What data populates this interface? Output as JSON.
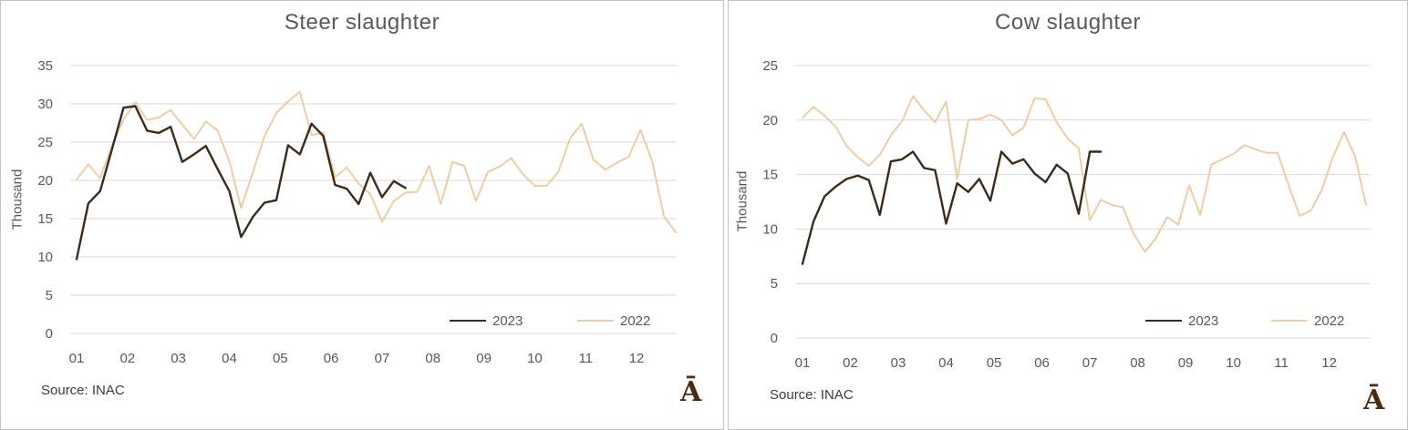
{
  "colors": {
    "series_2023": "#3B2B1D",
    "series_2022": "#EFCDA3",
    "grid": "#D9D9D9",
    "axis_text": "#595959",
    "title_text": "#595959",
    "source_text": "#3B3B3B",
    "logo": "#4B2A12",
    "panel_border": "#C6C4C2"
  },
  "panels": [
    {
      "title": "Steer slaughter",
      "y_axis_title": "Thousand",
      "source_label": "Source: INAC",
      "logo_glyph": "Ā",
      "legend": [
        {
          "label": "2023"
        },
        {
          "label": "2022"
        }
      ]
    },
    {
      "title": "Cow slaughter",
      "y_axis_title": "Thousand",
      "source_label": "Source: INAC",
      "logo_glyph": "Ā",
      "legend": [
        {
          "label": "2023"
        },
        {
          "label": "2022"
        }
      ]
    }
  ],
  "chart_data": [
    {
      "type": "line",
      "title": "Steer slaughter",
      "xlabel": "",
      "ylabel": "Thousand",
      "ylim": [
        0,
        35
      ],
      "y_ticks": [
        0,
        5,
        10,
        15,
        20,
        25,
        30,
        35
      ],
      "x_tick_labels": [
        "01",
        "02",
        "03",
        "04",
        "05",
        "06",
        "07",
        "08",
        "09",
        "10",
        "11",
        "12"
      ],
      "x_unit": "week",
      "points_per_month": 4.3333,
      "grid": true,
      "legend_position": "inside-bottom-right",
      "source": "Source: INAC",
      "series": [
        {
          "name": "2023",
          "color": "#3B2B1D",
          "values": [
            9.7,
            17.0,
            18.6,
            24.0,
            29.5,
            29.7,
            26.5,
            26.2,
            27.0,
            22.4,
            23.4,
            24.5,
            21.5,
            18.6,
            12.6,
            15.2,
            17.1,
            17.4,
            24.6,
            23.4,
            27.4,
            25.8,
            19.4,
            18.9,
            16.9,
            21.0,
            17.8,
            19.9,
            19.0
          ]
        },
        {
          "name": "2022",
          "color": "#EFCDA3",
          "values": [
            20.1,
            22.1,
            20.3,
            24.5,
            28.0,
            30.2,
            27.9,
            28.2,
            29.2,
            27.3,
            25.4,
            27.7,
            26.5,
            22.5,
            16.4,
            21.0,
            25.8,
            28.8,
            30.3,
            31.6,
            25.9,
            26.3,
            20.4,
            21.7,
            19.6,
            18.2,
            14.6,
            17.3,
            18.4,
            18.5,
            21.9,
            16.9,
            22.4,
            21.9,
            17.3,
            21.1,
            21.8,
            22.9,
            20.8,
            19.3,
            19.3,
            21.1,
            25.5,
            27.4,
            22.7,
            21.4,
            22.3,
            23.1,
            26.6,
            22.5,
            15.3,
            13.2
          ]
        }
      ]
    },
    {
      "type": "line",
      "title": "Cow slaughter",
      "xlabel": "",
      "ylabel": "Thousand",
      "ylim": [
        0,
        25
      ],
      "y_ticks": [
        0,
        5,
        10,
        15,
        20,
        25
      ],
      "x_tick_labels": [
        "01",
        "02",
        "03",
        "04",
        "05",
        "06",
        "07",
        "08",
        "09",
        "10",
        "11",
        "12"
      ],
      "x_unit": "week",
      "points_per_month": 4.3333,
      "grid": true,
      "legend_position": "inside-bottom-right",
      "source": "Source: INAC",
      "series": [
        {
          "name": "2023",
          "color": "#3B2B1D",
          "values": [
            6.8,
            10.7,
            13.0,
            13.9,
            14.6,
            14.9,
            14.5,
            11.3,
            16.2,
            16.4,
            17.1,
            15.6,
            15.4,
            10.5,
            14.2,
            13.4,
            14.6,
            12.6,
            17.1,
            16.0,
            16.4,
            15.1,
            14.3,
            15.9,
            15.1,
            11.4,
            17.1,
            17.1
          ]
        },
        {
          "name": "2022",
          "color": "#EFCDA3",
          "values": [
            20.2,
            21.2,
            20.4,
            19.4,
            17.6,
            16.6,
            15.8,
            16.8,
            18.6,
            19.9,
            22.2,
            20.9,
            19.8,
            21.7,
            14.6,
            20.0,
            20.1,
            20.5,
            20.0,
            18.6,
            19.3,
            22.0,
            21.9,
            19.8,
            18.3,
            17.4,
            10.8,
            12.7,
            12.2,
            12.0,
            9.5,
            7.9,
            9.2,
            11.1,
            10.4,
            14.0,
            11.3,
            15.9,
            16.4,
            16.9,
            17.7,
            17.3,
            17.0,
            17.0,
            14.0,
            11.2,
            11.7,
            13.6,
            16.6,
            18.9,
            16.7,
            12.2
          ]
        }
      ]
    }
  ]
}
